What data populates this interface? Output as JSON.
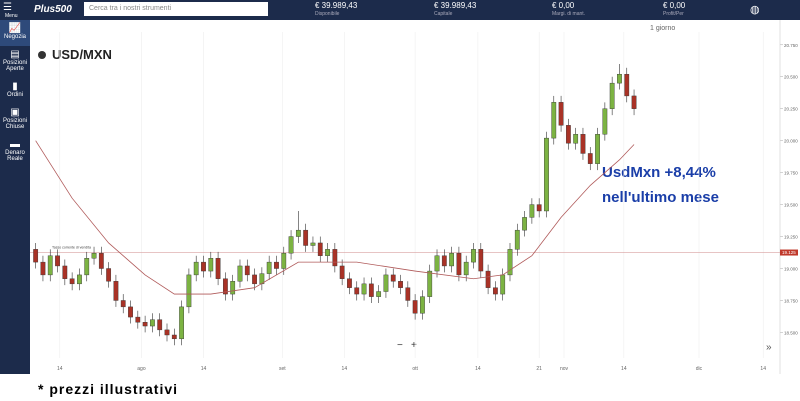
{
  "topbar": {
    "menu": "Menu",
    "logo": "Plus500",
    "search": "Cerca tra i nostri strumenti",
    "stats": [
      {
        "value": "€ 39.989,43",
        "label": "Disponibile"
      },
      {
        "value": "€ 39.989,43",
        "label": "Capitale"
      },
      {
        "value": "€ 0,00",
        "label": "Margi. di mant."
      },
      {
        "value": "€ 0,00",
        "label": "Profit/Per"
      }
    ]
  },
  "sidebar": [
    "Negozia",
    "Posizioni Aperte",
    "Ordini",
    "Posizioni Chiuse",
    "Denaro Reale"
  ],
  "footer": "* prezzi illustrativi",
  "chart_data": {
    "type": "candlestick",
    "title": "USD/MXN",
    "period": "1 giorno",
    "annotation": [
      "UsdMxn +8,44%",
      "nell'ultimo mese"
    ],
    "current_price": {
      "value": 19.125,
      "label": "19.125",
      "name": "Tasso corrente di vendita"
    },
    "zoom": [
      "−",
      "+"
    ],
    "open": [
      19.15,
      19.05,
      18.95,
      19.1,
      19.02,
      18.92,
      18.88,
      18.95,
      19.08,
      19.12,
      19.0,
      18.9,
      18.75,
      18.7,
      18.62,
      18.58,
      18.55,
      18.6,
      18.52,
      18.48,
      18.45,
      18.7,
      18.95,
      19.05,
      18.98,
      19.08,
      18.92,
      18.8,
      18.9,
      19.02,
      18.95,
      18.88,
      18.96,
      19.05,
      19.0,
      19.12,
      19.25,
      19.3,
      19.18,
      19.2,
      19.1,
      19.15,
      19.02,
      18.92,
      18.85,
      18.8,
      18.88,
      18.78,
      18.82,
      18.95,
      18.9,
      18.85,
      18.75,
      18.65,
      18.78,
      18.98,
      19.1,
      19.02,
      19.12,
      18.95,
      19.05,
      19.15,
      18.98,
      18.85,
      18.8,
      18.95,
      19.15,
      19.3,
      19.4,
      19.5,
      19.45,
      20.02,
      20.3,
      20.12,
      19.98,
      20.05,
      19.9,
      19.82,
      20.05,
      20.25,
      20.45,
      20.52,
      20.35
    ],
    "high": [
      19.2,
      19.1,
      19.15,
      19.15,
      19.07,
      18.97,
      19.0,
      19.13,
      19.17,
      19.17,
      19.05,
      18.95,
      18.8,
      18.75,
      18.67,
      18.63,
      18.65,
      18.65,
      18.57,
      18.53,
      18.75,
      19.0,
      19.1,
      19.1,
      19.13,
      19.13,
      18.97,
      18.95,
      19.07,
      19.07,
      19.0,
      19.01,
      19.1,
      19.1,
      19.17,
      19.3,
      19.45,
      19.35,
      19.25,
      19.25,
      19.2,
      19.2,
      19.07,
      18.97,
      18.9,
      18.93,
      18.93,
      18.87,
      19.0,
      19.0,
      18.95,
      18.9,
      18.8,
      18.83,
      19.03,
      19.15,
      19.15,
      19.17,
      19.17,
      19.1,
      19.2,
      19.2,
      19.03,
      18.9,
      19.0,
      19.2,
      19.35,
      19.45,
      19.55,
      19.55,
      20.07,
      20.35,
      20.35,
      20.17,
      20.1,
      20.1,
      19.95,
      20.1,
      20.3,
      20.5,
      20.6,
      20.57,
      20.4
    ],
    "low": [
      19.0,
      18.9,
      18.9,
      18.97,
      18.87,
      18.83,
      18.83,
      18.9,
      19.03,
      18.95,
      18.85,
      18.7,
      18.65,
      18.57,
      18.53,
      18.5,
      18.5,
      18.47,
      18.43,
      18.4,
      18.4,
      18.65,
      18.9,
      18.93,
      18.93,
      18.87,
      18.75,
      18.75,
      18.85,
      18.9,
      18.83,
      18.83,
      18.91,
      18.95,
      18.95,
      19.07,
      19.2,
      19.13,
      19.13,
      19.05,
      19.05,
      18.97,
      18.87,
      18.8,
      18.75,
      18.75,
      18.73,
      18.73,
      18.77,
      18.85,
      18.8,
      18.7,
      18.6,
      18.6,
      18.73,
      18.93,
      18.97,
      18.97,
      18.9,
      18.9,
      19.0,
      18.93,
      18.8,
      18.75,
      18.75,
      18.9,
      19.1,
      19.25,
      19.35,
      19.4,
      19.4,
      19.97,
      20.07,
      19.93,
      19.93,
      19.85,
      19.77,
      19.77,
      20.0,
      20.2,
      20.4,
      20.3,
      20.2
    ],
    "close": [
      19.05,
      18.95,
      19.1,
      19.02,
      18.92,
      18.88,
      18.95,
      19.08,
      19.12,
      19.0,
      18.9,
      18.75,
      18.7,
      18.62,
      18.58,
      18.55,
      18.6,
      18.52,
      18.48,
      18.45,
      18.7,
      18.95,
      19.05,
      18.98,
      19.08,
      18.92,
      18.8,
      18.9,
      19.02,
      18.95,
      18.88,
      18.96,
      19.05,
      19.0,
      19.12,
      19.25,
      19.3,
      19.18,
      19.2,
      19.1,
      19.15,
      19.02,
      18.92,
      18.85,
      18.8,
      18.88,
      18.78,
      18.82,
      18.95,
      18.9,
      18.85,
      18.75,
      18.65,
      18.78,
      18.98,
      19.1,
      19.02,
      19.12,
      18.95,
      19.05,
      19.15,
      18.98,
      18.85,
      18.8,
      18.95,
      19.15,
      19.3,
      19.4,
      19.5,
      19.45,
      20.02,
      20.3,
      20.12,
      19.98,
      20.05,
      19.9,
      19.82,
      20.05,
      20.25,
      20.45,
      20.52,
      20.35,
      20.25
    ],
    "up_color": "#7cb342",
    "down_color": "#a93226",
    "ma_color": "#b05a5a",
    "ma": {
      "x": [
        0,
        5,
        10,
        15,
        19,
        24,
        30,
        36,
        44,
        52,
        60,
        64,
        68,
        72,
        76,
        80,
        82
      ],
      "values": [
        20.0,
        19.55,
        19.2,
        18.95,
        18.8,
        18.8,
        18.85,
        19.05,
        19.05,
        18.98,
        18.92,
        18.95,
        19.1,
        19.4,
        19.65,
        19.85,
        19.97
      ]
    },
    "xlim": [
      -0.5,
      102
    ],
    "ylim": [
      18.3,
      20.85
    ],
    "xticks": [
      {
        "value": 3.3,
        "label": "14"
      },
      {
        "value": 14.5,
        "label": "ago"
      },
      {
        "value": 23,
        "label": "14"
      },
      {
        "value": 33.8,
        "label": "set"
      },
      {
        "value": 42.3,
        "label": "14"
      },
      {
        "value": 52,
        "label": "ott"
      },
      {
        "value": 60.6,
        "label": "14"
      },
      {
        "value": 69,
        "label": "21"
      },
      {
        "value": 72.4,
        "label": "nov"
      },
      {
        "value": 80.6,
        "label": "14"
      },
      {
        "value": 90.9,
        "label": "dic"
      },
      {
        "value": 99.7,
        "label": "14"
      }
    ],
    "yticks": [
      {
        "value": 18.5,
        "label": "18.500"
      },
      {
        "value": 18.75,
        "label": "18.750"
      },
      {
        "value": 19,
        "label": "19.000"
      },
      {
        "value": 19.25,
        "label": "19.250"
      },
      {
        "value": 19.5,
        "label": "19.500"
      },
      {
        "value": 19.75,
        "label": "19.750"
      },
      {
        "value": 20,
        "label": "20.000"
      },
      {
        "value": 20.25,
        "label": "20.250"
      },
      {
        "value": 20.5,
        "label": "20.500"
      },
      {
        "value": 20.75,
        "label": "20.750"
      }
    ],
    "grid": true
  }
}
